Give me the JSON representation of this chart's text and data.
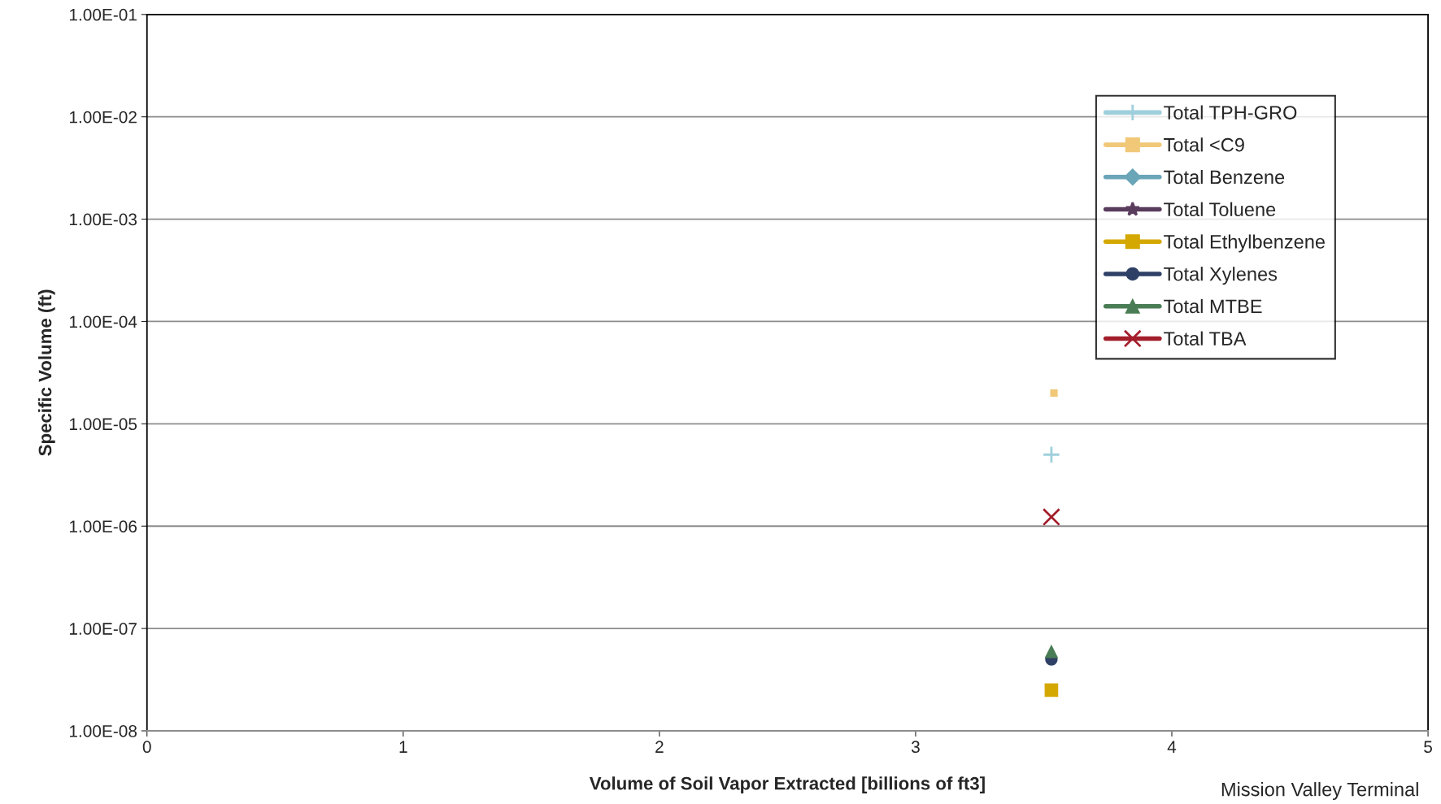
{
  "chart_data": {
    "type": "line",
    "xlabel": "Volume of Soil Vapor Extracted [billions of ft3]",
    "ylabel": "Specific Volume (ft)",
    "log": "y",
    "xlim": [
      0,
      5
    ],
    "xticks": [
      0,
      1,
      2,
      3,
      4,
      5
    ],
    "ylim": [
      1e-08,
      0.1
    ],
    "yticks": [
      {
        "value": 1e-08,
        "label": "1.00E-08"
      },
      {
        "value": 1e-07,
        "label": "1.00E-07"
      },
      {
        "value": 1e-06,
        "label": "1.00E-06"
      },
      {
        "value": 1e-05,
        "label": "1.00E-05"
      },
      {
        "value": 0.0001,
        "label": "1.00E-04"
      },
      {
        "value": 0.001,
        "label": "1.00E-03"
      },
      {
        "value": 0.01,
        "label": "1.00E-02"
      },
      {
        "value": 0.1,
        "label": "1.00E-01"
      }
    ],
    "grid": "y",
    "legend": "top right",
    "line_style": "solid",
    "annotations": [
      "Mission Valley Terminal"
    ],
    "x": [
      3.53
    ],
    "series": [
      {
        "name": "Total TPH-GRO",
        "color": "#9fcfdc",
        "marker": "plus",
        "values": [
          5e-06
        ]
      },
      {
        "name": "Total <C9",
        "color": "#f0c878",
        "marker": "square",
        "x": [
          3.54
        ],
        "values": [
          2e-05
        ]
      },
      {
        "name": "Total Benzene",
        "color": "#6aa5b8",
        "marker": "diamond",
        "values": [
          null
        ]
      },
      {
        "name": "Total Toluene",
        "color": "#5a3d5c",
        "marker": "star",
        "values": [
          null
        ]
      },
      {
        "name": "Total Ethylbenzene",
        "color": "#d4a800",
        "marker": "square",
        "values": [
          2.5e-08
        ]
      },
      {
        "name": "Total Xylenes",
        "color": "#2f4066",
        "marker": "circle",
        "values": [
          5e-08
        ]
      },
      {
        "name": "Total MTBE",
        "color": "#4a7d55",
        "marker": "triangle",
        "values": [
          6e-08
        ]
      },
      {
        "name": "Total TBA",
        "color": "#a31d2a",
        "marker": "cross",
        "values": [
          1.23e-06
        ]
      }
    ]
  }
}
